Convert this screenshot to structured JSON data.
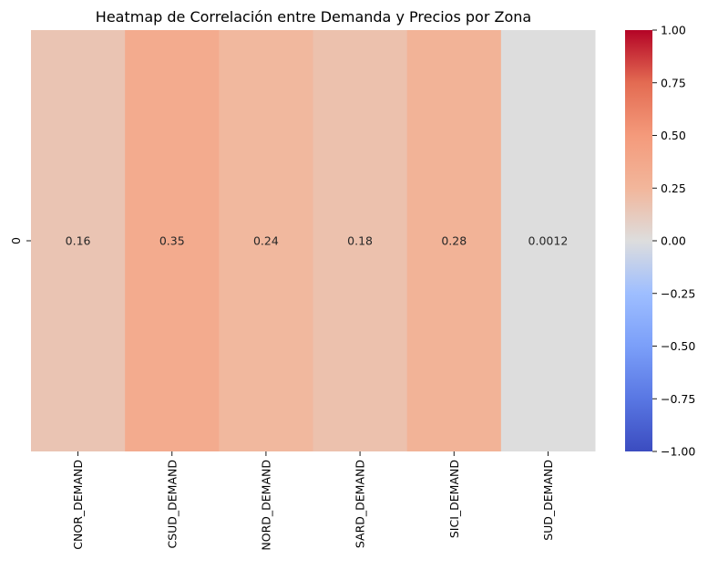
{
  "chart_data": {
    "type": "heatmap",
    "title": "Heatmap de Correlación entre Demanda y Precios por Zona",
    "xlabel": "",
    "ylabel": "",
    "rows": [
      "0"
    ],
    "columns": [
      "CNOR_DEMAND",
      "CSUD_DEMAND",
      "NORD_DEMAND",
      "SARD_DEMAND",
      "SICI_DEMAND",
      "SUD_DEMAND"
    ],
    "values": [
      [
        0.16,
        0.35,
        0.24,
        0.18,
        0.28,
        0.0012
      ]
    ],
    "annotations": [
      [
        "0.16",
        "0.35",
        "0.24",
        "0.18",
        "0.28",
        "0.0012"
      ]
    ],
    "colormap": "coolwarm",
    "vmin": -1.0,
    "vmax": 1.0,
    "colorbar": {
      "position": "right",
      "ticks": [
        "1.00",
        "0.75",
        "0.50",
        "0.25",
        "0.00",
        "−0.25",
        "−0.50",
        "−0.75",
        "−1.00"
      ],
      "tick_values": [
        1.0,
        0.75,
        0.5,
        0.25,
        0.0,
        -0.25,
        -0.5,
        -0.75,
        -1.0
      ]
    },
    "grid": false
  }
}
